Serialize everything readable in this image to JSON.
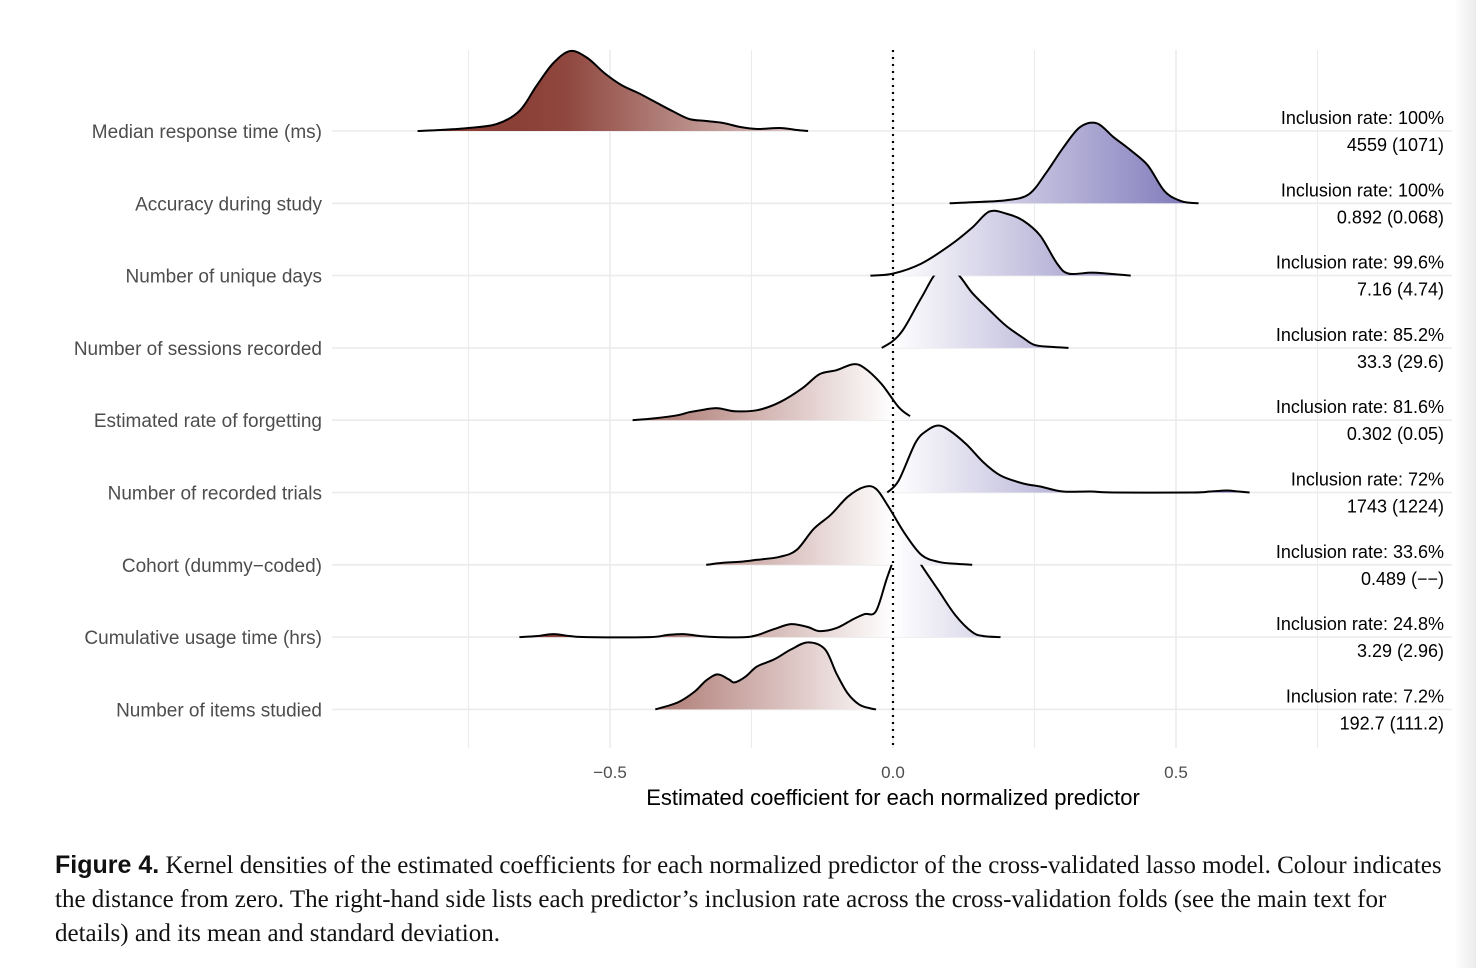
{
  "chart_data": {
    "type": "ridgeline",
    "xlabel": "Estimated coefficient for each normalized predictor",
    "xlim": [
      -0.99,
      0.99
    ],
    "x_ticks": [
      -0.5,
      0.0,
      0.5
    ],
    "x_tick_labels": [
      "−0.5",
      "0.0",
      "0.5"
    ],
    "reference_line": 0.0,
    "grid": true,
    "color_scale": {
      "negative": "#8b4037",
      "zero": "#ffffff",
      "positive": "#6d66b0",
      "max_abs": 0.6
    },
    "rows": [
      {
        "label": "Median response time (ms)",
        "annotation": [
          "Inclusion rate: 100%",
          "4559 (1071)"
        ],
        "density": [
          [
            -0.84,
            0
          ],
          [
            -0.8,
            0.01
          ],
          [
            -0.75,
            0.03
          ],
          [
            -0.7,
            0.07
          ],
          [
            -0.66,
            0.2
          ],
          [
            -0.63,
            0.45
          ],
          [
            -0.6,
            0.68
          ],
          [
            -0.57,
            0.8
          ],
          [
            -0.54,
            0.73
          ],
          [
            -0.51,
            0.58
          ],
          [
            -0.48,
            0.46
          ],
          [
            -0.45,
            0.38
          ],
          [
            -0.42,
            0.29
          ],
          [
            -0.39,
            0.2
          ],
          [
            -0.36,
            0.12
          ],
          [
            -0.33,
            0.1
          ],
          [
            -0.3,
            0.08
          ],
          [
            -0.27,
            0.04
          ],
          [
            -0.24,
            0.02
          ],
          [
            -0.2,
            0.03
          ],
          [
            -0.17,
            0.01
          ],
          [
            -0.15,
            0
          ]
        ]
      },
      {
        "label": "Accuracy during study",
        "annotation": [
          "Inclusion rate: 100%",
          "0.892 (0.068)"
        ],
        "density": [
          [
            0.1,
            0
          ],
          [
            0.14,
            0.01
          ],
          [
            0.2,
            0.03
          ],
          [
            0.24,
            0.09
          ],
          [
            0.27,
            0.3
          ],
          [
            0.3,
            0.55
          ],
          [
            0.33,
            0.76
          ],
          [
            0.36,
            0.8
          ],
          [
            0.39,
            0.66
          ],
          [
            0.42,
            0.53
          ],
          [
            0.45,
            0.38
          ],
          [
            0.48,
            0.12
          ],
          [
            0.51,
            0.02
          ],
          [
            0.54,
            0
          ]
        ]
      },
      {
        "label": "Number of unique days",
        "annotation": [
          "Inclusion rate: 99.6%",
          "7.16 (4.74)"
        ],
        "density": [
          [
            -0.04,
            0
          ],
          [
            0,
            0.02
          ],
          [
            0.05,
            0.12
          ],
          [
            0.1,
            0.3
          ],
          [
            0.14,
            0.48
          ],
          [
            0.17,
            0.64
          ],
          [
            0.2,
            0.62
          ],
          [
            0.23,
            0.55
          ],
          [
            0.26,
            0.4
          ],
          [
            0.29,
            0.12
          ],
          [
            0.31,
            0.02
          ],
          [
            0.35,
            0.03
          ],
          [
            0.38,
            0.02
          ],
          [
            0.42,
            0
          ]
        ]
      },
      {
        "label": "Number of sessions recorded",
        "annotation": [
          "Inclusion rate: 85.2%",
          "33.3 (29.6)"
        ],
        "density": [
          [
            -0.02,
            0
          ],
          [
            0,
            0.07
          ],
          [
            0.02,
            0.2
          ],
          [
            0.05,
            0.5
          ],
          [
            0.08,
            0.77
          ],
          [
            0.11,
            0.76
          ],
          [
            0.14,
            0.55
          ],
          [
            0.17,
            0.38
          ],
          [
            0.2,
            0.22
          ],
          [
            0.23,
            0.1
          ],
          [
            0.25,
            0.03
          ],
          [
            0.28,
            0.01
          ],
          [
            0.31,
            0
          ]
        ]
      },
      {
        "label": "Estimated rate of forgetting",
        "annotation": [
          "Inclusion rate: 81.6%",
          "0.302 (0.05)"
        ],
        "density": [
          [
            -0.46,
            0
          ],
          [
            -0.42,
            0.02
          ],
          [
            -0.38,
            0.05
          ],
          [
            -0.36,
            0.08
          ],
          [
            -0.34,
            0.1
          ],
          [
            -0.31,
            0.12
          ],
          [
            -0.28,
            0.09
          ],
          [
            -0.24,
            0.1
          ],
          [
            -0.2,
            0.18
          ],
          [
            -0.16,
            0.32
          ],
          [
            -0.13,
            0.46
          ],
          [
            -0.1,
            0.5
          ],
          [
            -0.07,
            0.56
          ],
          [
            -0.05,
            0.52
          ],
          [
            -0.02,
            0.36
          ],
          [
            0.01,
            0.13
          ],
          [
            0.03,
            0.04
          ]
        ]
      },
      {
        "label": "Number of recorded trials",
        "annotation": [
          "Inclusion rate: 72%",
          "1743 (1224)"
        ],
        "density": [
          [
            -0.01,
            0
          ],
          [
            0.01,
            0.12
          ],
          [
            0.04,
            0.5
          ],
          [
            0.06,
            0.62
          ],
          [
            0.08,
            0.67
          ],
          [
            0.1,
            0.62
          ],
          [
            0.13,
            0.48
          ],
          [
            0.16,
            0.3
          ],
          [
            0.19,
            0.17
          ],
          [
            0.23,
            0.09
          ],
          [
            0.26,
            0.06
          ],
          [
            0.3,
            0.01
          ],
          [
            0.35,
            0.01
          ],
          [
            0.39,
            0
          ],
          [
            0.53,
            0
          ],
          [
            0.56,
            0.01
          ],
          [
            0.59,
            0.02
          ],
          [
            0.61,
            0.01
          ],
          [
            0.63,
            0
          ]
        ]
      },
      {
        "label": "Cohort (dummy−coded)",
        "annotation": [
          "Inclusion rate: 33.6%",
          "0.489 (−−)"
        ],
        "density": [
          [
            -0.33,
            0
          ],
          [
            -0.3,
            0.02
          ],
          [
            -0.27,
            0.03
          ],
          [
            -0.24,
            0.05
          ],
          [
            -0.2,
            0.08
          ],
          [
            -0.17,
            0.15
          ],
          [
            -0.14,
            0.36
          ],
          [
            -0.11,
            0.5
          ],
          [
            -0.08,
            0.68
          ],
          [
            -0.05,
            0.78
          ],
          [
            -0.03,
            0.76
          ],
          [
            -0.01,
            0.6
          ],
          [
            0.02,
            0.32
          ],
          [
            0.05,
            0.1
          ],
          [
            0.08,
            0.03
          ],
          [
            0.11,
            0.01
          ],
          [
            0.14,
            0
          ]
        ]
      },
      {
        "label": "Cumulative usage time (hrs)",
        "annotation": [
          "Inclusion rate: 24.8%",
          "3.29 (2.96)"
        ],
        "density": [
          [
            -0.66,
            0
          ],
          [
            -0.63,
            0.01
          ],
          [
            -0.6,
            0.03
          ],
          [
            -0.57,
            0.01
          ],
          [
            -0.54,
            0
          ],
          [
            -0.43,
            0
          ],
          [
            -0.4,
            0.02
          ],
          [
            -0.37,
            0.03
          ],
          [
            -0.34,
            0.01
          ],
          [
            -0.31,
            0
          ],
          [
            -0.26,
            0
          ],
          [
            -0.24,
            0.02
          ],
          [
            -0.21,
            0.08
          ],
          [
            -0.18,
            0.13
          ],
          [
            -0.15,
            0.1
          ],
          [
            -0.13,
            0.06
          ],
          [
            -0.1,
            0.09
          ],
          [
            -0.07,
            0.18
          ],
          [
            -0.05,
            0.23
          ],
          [
            -0.03,
            0.26
          ],
          [
            -0.01,
            0.6
          ],
          [
            0.01,
            0.88
          ],
          [
            0.03,
            0.9
          ],
          [
            0.05,
            0.72
          ],
          [
            0.08,
            0.47
          ],
          [
            0.11,
            0.22
          ],
          [
            0.14,
            0.05
          ],
          [
            0.16,
            0.01
          ],
          [
            0.19,
            0
          ]
        ]
      },
      {
        "label": "Number of items studied",
        "annotation": [
          "Inclusion rate: 7.2%",
          "192.7 (111.2)"
        ],
        "density": [
          [
            -0.42,
            0
          ],
          [
            -0.38,
            0.07
          ],
          [
            -0.35,
            0.18
          ],
          [
            -0.33,
            0.29
          ],
          [
            -0.31,
            0.35
          ],
          [
            -0.29,
            0.3
          ],
          [
            -0.28,
            0.27
          ],
          [
            -0.26,
            0.33
          ],
          [
            -0.24,
            0.43
          ],
          [
            -0.21,
            0.5
          ],
          [
            -0.18,
            0.6
          ],
          [
            -0.15,
            0.67
          ],
          [
            -0.12,
            0.6
          ],
          [
            -0.1,
            0.36
          ],
          [
            -0.08,
            0.16
          ],
          [
            -0.06,
            0.05
          ],
          [
            -0.04,
            0.01
          ],
          [
            -0.03,
            0
          ]
        ]
      }
    ]
  },
  "caption": {
    "label": "Figure 4.",
    "text": " Kernel densities of the estimated coefficients for each normalized predictor of the cross-validated lasso model. Colour indicates the distance from zero. The right-hand side lists each predictor’s inclusion rate across the cross-validation folds (see the main text for details) and its mean and standard deviation."
  }
}
